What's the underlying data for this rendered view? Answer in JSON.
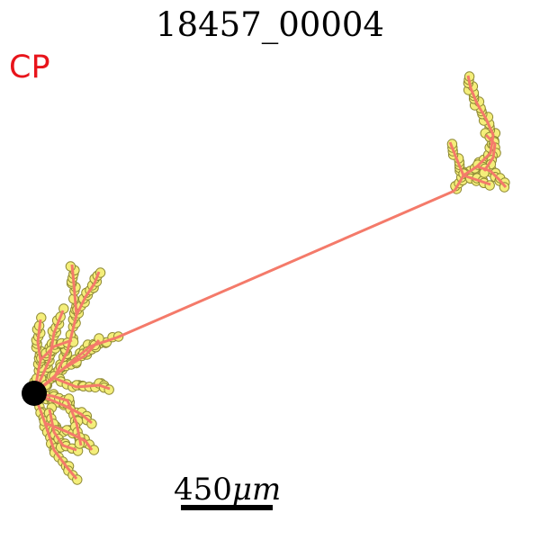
{
  "title": "18457_00004",
  "region_label": "CP",
  "scale_bar": {
    "label": "450",
    "unit": "μm"
  },
  "colors": {
    "region_label": "#e8141b",
    "neurite": "#f47a6a",
    "node_fill": "#f4ee7a",
    "node_stroke": "#8f8a35",
    "soma": "#000000"
  }
}
